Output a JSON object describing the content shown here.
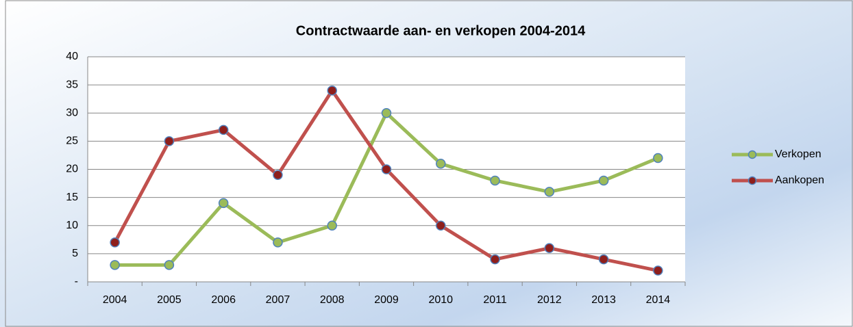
{
  "chart_data": {
    "type": "line",
    "title": "Contractwaarde aan- en verkopen 2004-2014",
    "categories": [
      "2004",
      "2005",
      "2006",
      "2007",
      "2008",
      "2009",
      "2010",
      "2011",
      "2012",
      "2013",
      "2014"
    ],
    "series": [
      {
        "name": "Verkopen",
        "color": "#9bbb59",
        "marker_color": "#9bbb59",
        "values": [
          3,
          3,
          14,
          7,
          10,
          30,
          21,
          18,
          16,
          18,
          22
        ]
      },
      {
        "name": "Aankopen",
        "color": "#c0504d",
        "marker_color": "#8e1f1c",
        "values": [
          7,
          25,
          27,
          19,
          34,
          20,
          10,
          4,
          6,
          4,
          2
        ]
      }
    ],
    "ylim": [
      0,
      40
    ],
    "yticks": [
      {
        "value": 0,
        "label": "-"
      },
      5,
      10,
      15,
      20,
      25,
      30,
      35,
      40
    ],
    "grid": true,
    "legend": "right"
  }
}
